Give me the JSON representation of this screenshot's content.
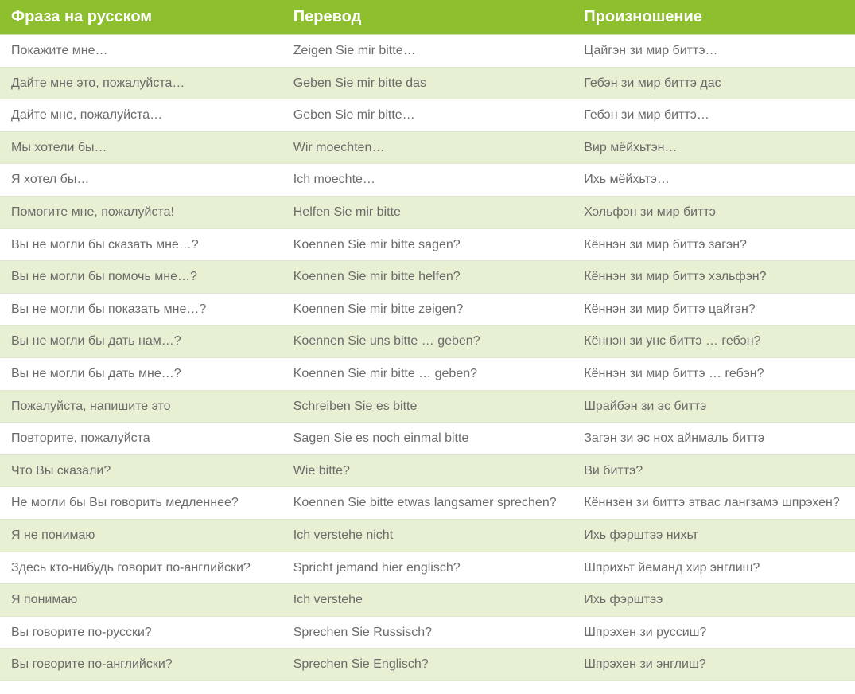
{
  "table": {
    "header_bg": "#8ebf2f",
    "header_text_color": "#ffffff",
    "header_fontsize": 20,
    "body_text_color": "#6b6b6b",
    "body_fontsize": 16,
    "row_bg_even": "#e8f0d3",
    "row_bg_odd": "#ffffff",
    "row_border_color": "#e0e6d0",
    "columns": [
      "Фраза на русском",
      "Перевод",
      "Произношение"
    ],
    "rows": [
      [
        "Покажите мне…",
        "Zeigen Sie mir bitte…",
        "Цайгэн зи мир биттэ…"
      ],
      [
        "Дайте мне это, пожалуйста…",
        "Geben Sie mir bitte das",
        "Гебэн зи мир биттэ дас"
      ],
      [
        "Дайте мне, пожалуйста…",
        "Geben Sie mir bitte…",
        "Гебэн зи мир биттэ…"
      ],
      [
        "Мы хотели бы…",
        "Wir moechten…",
        "Вир мёйхьтэн…"
      ],
      [
        "Я хотел бы…",
        "Ich moechte…",
        "Ихь мёйхьтэ…"
      ],
      [
        "Помогите мне, пожалуйста!",
        "Helfen Sie mir bitte",
        "Хэльфэн зи мир биттэ"
      ],
      [
        "Вы не могли бы сказать мне…?",
        "Koennen Sie mir bitte sagen?",
        "Кённэн зи мир биттэ загэн?"
      ],
      [
        "Вы не могли бы помочь мне…?",
        "Koennen Sie mir bitte helfen?",
        "Кённэн зи мир биттэ хэльфэн?"
      ],
      [
        "Вы не могли бы показать мне…?",
        "Koennen Sie mir bitte zeigen?",
        "Кённэн зи мир биттэ цайгэн?"
      ],
      [
        "Вы не могли бы дать нам…?",
        "Koennen Sie uns bitte … geben?",
        "Кённэн зи унс биттэ … гебэн?"
      ],
      [
        "Вы не могли бы дать мне…?",
        "Koennen Sie mir bitte … geben?",
        "Кённэн зи мир биттэ … гебэн?"
      ],
      [
        "Пожалуйста, напишите это",
        "Schreiben Sie es bitte",
        "Шрайбэн зи эс биттэ"
      ],
      [
        "Повторите, пожалуйста",
        "Sagen Sie es noch einmal bitte",
        "Загэн зи эс нох айнмаль биттэ"
      ],
      [
        "Что Вы сказали?",
        "Wie bitte?",
        "Ви биттэ?"
      ],
      [
        "Не могли бы Вы говорить медленнее?",
        "Koennen Sie bitte etwas langsamer sprechen?",
        "Кённзен зи биттэ этвас лангзамэ шпрэхен?"
      ],
      [
        "Я не понимаю",
        "Ich verstehe nicht",
        "Ихь фэрштээ нихьт"
      ],
      [
        "Здесь кто-нибудь говорит по-английски?",
        "Spricht jemand hier englisch?",
        "Шприхьт йеманд хир энглиш?"
      ],
      [
        "Я понимаю",
        "Ich verstehe",
        "Ихь фэрштээ"
      ],
      [
        "Вы говорите по-русски?",
        "Sprechen Sie Russisch?",
        "Шпрэхен зи руссиш?"
      ],
      [
        "Вы говорите по-английски?",
        "Sprechen Sie Englisch?",
        "Шпрэхен зи энглиш?"
      ]
    ]
  }
}
